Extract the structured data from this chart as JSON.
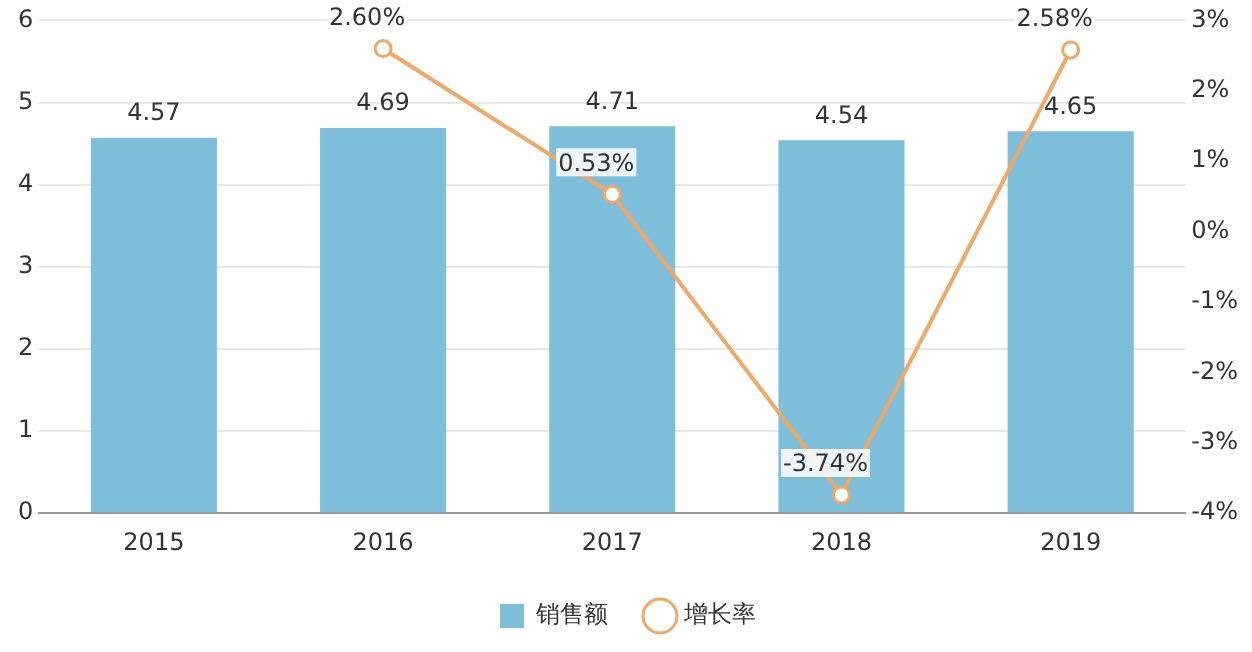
{
  "chart_data": {
    "type": "bar",
    "categories": [
      "2015",
      "2016",
      "2017",
      "2018",
      "2019"
    ],
    "series": [
      {
        "name": "销售额",
        "color": "#7dbedb",
        "values": [
          4.57,
          4.69,
          4.71,
          4.54,
          4.65
        ],
        "value_labels": [
          "4.57",
          "4.69",
          "4.71",
          "4.54",
          "4.65"
        ]
      },
      {
        "name": "增长率",
        "type": "line",
        "axis": "y2",
        "color": "#f0a868",
        "values": [
          null,
          2.6,
          0.53,
          -3.74,
          2.58
        ],
        "value_labels": [
          null,
          "2.60%",
          "0.53%",
          "-3.74%",
          "2.58%"
        ]
      }
    ],
    "ylim": [
      0,
      6
    ],
    "yticks": [
      0,
      1,
      2,
      3,
      4,
      5,
      6
    ],
    "y2lim": [
      -4,
      3
    ],
    "y2ticks": [
      {
        "value": -4,
        "label": "-4%"
      },
      {
        "value": -3,
        "label": "-3%"
      },
      {
        "value": -2,
        "label": "-2%"
      },
      {
        "value": -1,
        "label": "-1%"
      },
      {
        "value": 0,
        "label": "0%"
      },
      {
        "value": 1,
        "label": "1%"
      },
      {
        "value": 2,
        "label": "2%"
      },
      {
        "value": 3,
        "label": "3%"
      }
    ],
    "grid": "y",
    "legend": "bottom",
    "marker": "circle",
    "line_style": "solid"
  }
}
